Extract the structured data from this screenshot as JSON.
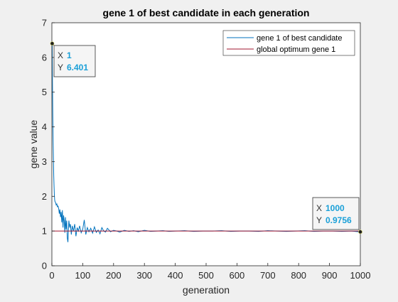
{
  "chart_data": {
    "type": "line",
    "title": "gene 1 of best candidate in each generation",
    "xlabel": "generation",
    "ylabel": "gene value",
    "xlim": [
      0,
      1000
    ],
    "ylim": [
      0,
      7
    ],
    "x_ticks": [
      0,
      100,
      200,
      300,
      400,
      500,
      600,
      700,
      800,
      900,
      1000
    ],
    "y_ticks": [
      0,
      1,
      2,
      3,
      4,
      5,
      6,
      7
    ],
    "grid": false,
    "legend_position": "top-right",
    "series": [
      {
        "name": "gene 1 of best candidate",
        "color": "#0072bd",
        "x": [
          1,
          2,
          3,
          4,
          5,
          6,
          7,
          8,
          9,
          10,
          12,
          14,
          16,
          18,
          20,
          22,
          24,
          26,
          28,
          30,
          32,
          34,
          36,
          38,
          40,
          42,
          44,
          46,
          48,
          50,
          52,
          55,
          58,
          60,
          63,
          66,
          70,
          74,
          78,
          82,
          86,
          90,
          95,
          100,
          105,
          110,
          115,
          120,
          126,
          132,
          138,
          144,
          150,
          156,
          162,
          168,
          174,
          180,
          190,
          200,
          210,
          220,
          235,
          250,
          265,
          280,
          300,
          320,
          340,
          360,
          380,
          400,
          430,
          460,
          490,
          520,
          550,
          580,
          610,
          640,
          670,
          700,
          730,
          760,
          790,
          820,
          850,
          880,
          910,
          940,
          970,
          1000
        ],
        "values": [
          6.401,
          5.2,
          4.3,
          3.6,
          3.1,
          2.6,
          2.3,
          2.05,
          1.9,
          1.85,
          1.82,
          1.75,
          1.78,
          1.7,
          1.72,
          1.65,
          1.5,
          1.62,
          1.4,
          1.55,
          1.25,
          1.6,
          1.1,
          1.45,
          1.3,
          0.95,
          1.4,
          1.05,
          1.3,
          0.8,
          0.68,
          1.3,
          1.1,
          1.2,
          0.9,
          1.15,
          1.0,
          1.2,
          0.85,
          1.1,
          1.0,
          1.15,
          0.95,
          1.05,
          1.32,
          0.9,
          1.1,
          0.98,
          1.08,
          0.94,
          1.12,
          0.96,
          1.03,
          0.92,
          1.1,
          1.0,
          0.97,
          1.08,
          0.98,
          1.02,
          1.0,
          0.97,
          1.02,
          0.99,
          1.01,
          0.98,
          1.02,
          0.99,
          1.0,
          1.01,
          0.99,
          1.0,
          1.01,
          0.99,
          1.0,
          1.0,
          1.01,
          0.99,
          1.0,
          1.0,
          0.99,
          1.01,
          1.0,
          0.99,
          1.0,
          1.01,
          0.99,
          1.0,
          1.0,
          0.99,
          1.0,
          0.9756
        ]
      },
      {
        "name": "global optimum gene 1",
        "color": "#a2142f",
        "x": [
          0,
          1000
        ],
        "values": [
          1,
          1
        ]
      }
    ],
    "datatips": [
      {
        "x_label": "X",
        "y_label": "Y",
        "x_value": "1",
        "y_value": "6.401",
        "x": 1,
        "y": 6.401
      },
      {
        "x_label": "X",
        "y_label": "Y",
        "x_value": "1000",
        "y_value": "0.9756",
        "x": 1000,
        "y": 0.9756
      }
    ]
  }
}
